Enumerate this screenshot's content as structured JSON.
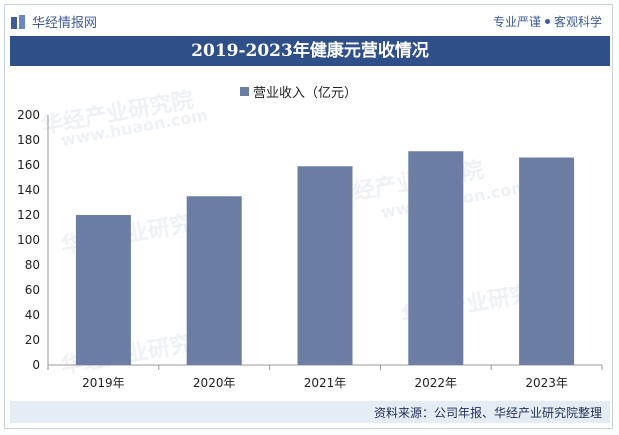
{
  "header": {
    "brand_name": "华经情报网",
    "slogan_left": "专业严谨",
    "slogan_right": "客观科学"
  },
  "watermark": {
    "text": "华经产业研究院",
    "url": "www.huaon.com"
  },
  "footer": {
    "source": "资料来源：公司年报、华经产业研究院整理"
  },
  "colors": {
    "title_bg": "#2e4f88",
    "bar": "#6b7da3",
    "footer_bg": "#e6ecf5"
  },
  "chart_data": {
    "type": "bar",
    "title": "2019-2023年健康元营收情况",
    "categories": [
      "2019年",
      "2020年",
      "2021年",
      "2022年",
      "2023年"
    ],
    "series": [
      {
        "name": "营业收入（亿元）",
        "values": [
          120,
          135,
          159,
          171,
          166
        ]
      }
    ],
    "xlabel": "",
    "ylabel": "",
    "ylim": [
      0,
      200
    ],
    "yticks": [
      0,
      20,
      40,
      60,
      80,
      100,
      120,
      140,
      160,
      180,
      200
    ],
    "grid": false,
    "legend_position": "top-center"
  }
}
